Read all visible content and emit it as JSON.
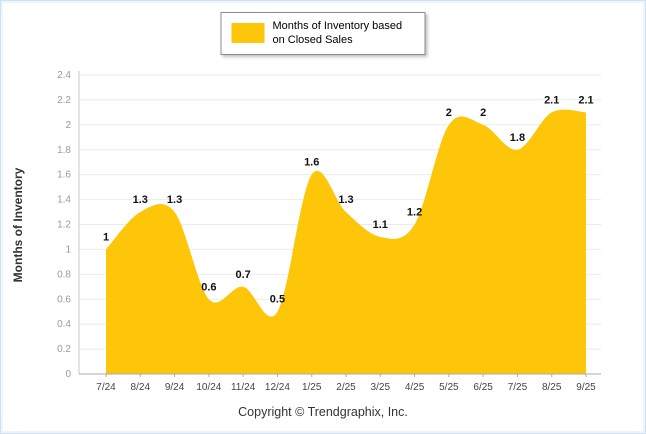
{
  "legend": {
    "label": "Months of Inventory based on Closed Sales"
  },
  "ylabel": "Months of Inventory",
  "footer": "Copyright © Trendgraphix, Inc.",
  "chart_data": {
    "type": "area",
    "title": "Months of Inventory based on Closed Sales",
    "xlabel": "",
    "ylabel": "Months of Inventory",
    "categories": [
      "7/24",
      "8/24",
      "9/24",
      "10/24",
      "11/24",
      "12/24",
      "1/25",
      "2/25",
      "3/25",
      "4/25",
      "5/25",
      "6/25",
      "7/25",
      "8/25",
      "9/25"
    ],
    "values": [
      1,
      1.3,
      1.3,
      0.6,
      0.7,
      0.5,
      1.6,
      1.3,
      1.1,
      1.2,
      2,
      2,
      1.8,
      2.1,
      2.1
    ],
    "point_labels": [
      "1",
      "1.3",
      "1.3",
      "0.6",
      "0.7",
      "0.5",
      "1.6",
      "1.3",
      "1.1",
      "1.2",
      "2",
      "2",
      "1.8",
      "2.1",
      "2.1"
    ],
    "y_ticks": [
      "0",
      "0.2",
      "0.4",
      "0.6",
      "0.8",
      "1",
      "1.2",
      "1.4",
      "1.6",
      "1.8",
      "2",
      "2.2",
      "2.4"
    ],
    "ylim": [
      0,
      2.4
    ],
    "grid": true,
    "legend_position": "top-center",
    "colors": {
      "area": "#FEC609",
      "grid": "#EBEBEB",
      "axis": "#ABABAB",
      "y_tick_text": "#9A9A9A",
      "x_tick_text": "#444444",
      "point_label_text": "#111111"
    }
  }
}
